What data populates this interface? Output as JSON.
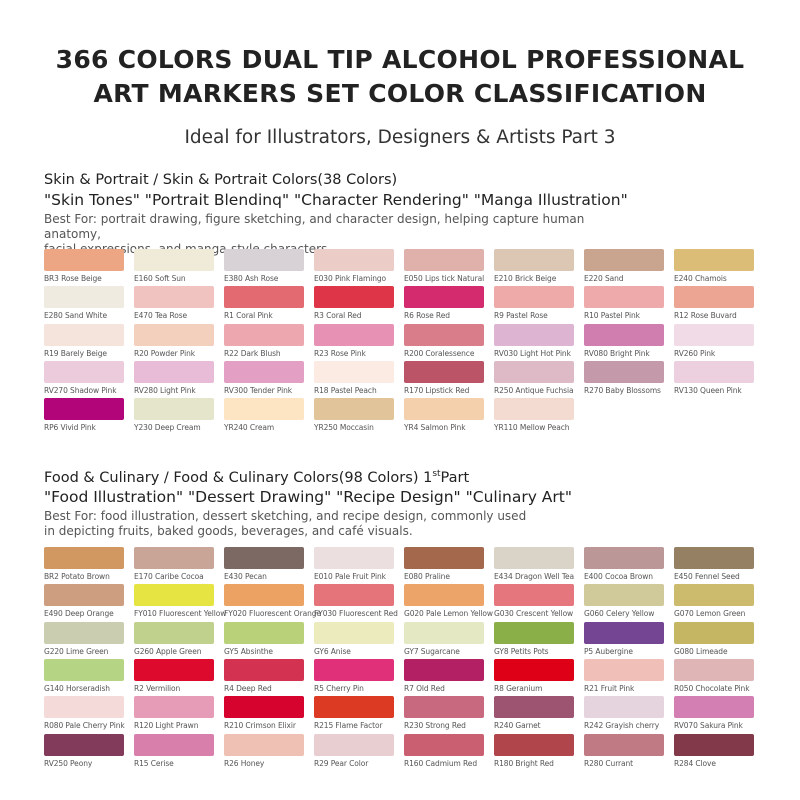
{
  "header": {
    "title_line1": "366 COLORS DUAL TIP ALCOHOL PROFESSIONAL",
    "title_line2": "ART MARKERS SET COLOR CLASSIFICATION",
    "subtitle": "Ideal for Illustrators, Designers & Artists Part 3"
  },
  "sections": [
    {
      "title": "Skin & Portrait / Skin & Portrait Colors(38 Colors)",
      "title_suffix": "",
      "title_sup": "",
      "quotes": "\"Skin Tones\" \"Portrait Blendinq\" \"Character Rendering\" \"Manga Illustration\"",
      "desc_line1": "Best For: portrait drawing, figure sketching, and character design, helping capture human anatomy,",
      "desc_line2": "facial expressions, and manga-style characters.",
      "colors": [
        {
          "label": "BR3 Rose Beige",
          "hex": "#eda684"
        },
        {
          "label": "E160 Soft Sun",
          "hex": "#efebd8"
        },
        {
          "label": "E380 Ash Rose",
          "hex": "#d8d2d6"
        },
        {
          "label": "E030 Pink Flamingo",
          "hex": "#ecccc6"
        },
        {
          "label": "E050 Lips tick Natural",
          "hex": "#dfb1aa"
        },
        {
          "label": "E210 Brick Beige",
          "hex": "#dcc7b4"
        },
        {
          "label": "E220 Sand",
          "hex": "#c9a58f"
        },
        {
          "label": "E240 Chamois",
          "hex": "#dcbd78"
        },
        {
          "label": "E280 Sand White",
          "hex": "#f0ebe0"
        },
        {
          "label": "E470 Tea Rose",
          "hex": "#f0c3c0"
        },
        {
          "label": "R1 Coral Pink",
          "hex": "#e26a70"
        },
        {
          "label": "R3 Coral Red",
          "hex": "#df3548"
        },
        {
          "label": "R6 Rose Red",
          "hex": "#d32b6e"
        },
        {
          "label": "R9 Pastel Rose",
          "hex": "#eeaaa8"
        },
        {
          "label": "R10 Pastel Pink",
          "hex": "#eeaaaa"
        },
        {
          "label": "R12 Rose Buvard",
          "hex": "#eca593"
        },
        {
          "label": "R19 Barely Beige",
          "hex": "#f4e4dc"
        },
        {
          "label": "R20 Powder Pink",
          "hex": "#f3cfbd"
        },
        {
          "label": "R22 Dark Blush",
          "hex": "#eca8ae"
        },
        {
          "label": "R23 Rose Pink",
          "hex": "#e792b4"
        },
        {
          "label": "R200 Coralessence",
          "hex": "#d87d89"
        },
        {
          "label": "RV030 Light Hot Pink",
          "hex": "#ddb5d2"
        },
        {
          "label": "RV080 Bright Pink",
          "hex": "#d07db0"
        },
        {
          "label": "RV260 Pink",
          "hex": "#f0dbe6"
        },
        {
          "label": "RV270 Shadow Pink",
          "hex": "#ecccdc"
        },
        {
          "label": "RV280 Light Pink",
          "hex": "#e8bbd6"
        },
        {
          "label": "RV300 Tender Pink",
          "hex": "#e3a0c4"
        },
        {
          "label": "R18 Pastel Peach",
          "hex": "#fcebe3"
        },
        {
          "label": "R170 Lipstick Red",
          "hex": "#bc5468"
        },
        {
          "label": "R250 Antique Fuchsia",
          "hex": "#deb9c6"
        },
        {
          "label": "R270 Baby Blossoms",
          "hex": "#c49aaa"
        },
        {
          "label": "RV130 Queen Pink",
          "hex": "#ecd0e0"
        },
        {
          "label": "RP6 Vivid Pink",
          "hex": "#b3057a"
        },
        {
          "label": "Y230 Deep Cream",
          "hex": "#e4e5cb"
        },
        {
          "label": "YR240 Cream",
          "hex": "#fde5c4"
        },
        {
          "label": "YR250 Moccasin",
          "hex": "#e2c49b"
        },
        {
          "label": "YR4 Salmon Pink",
          "hex": "#f4d0ac"
        },
        {
          "label": "YR110 Mellow Peach",
          "hex": "#f3dbd1"
        }
      ]
    },
    {
      "title": "Food & Culinary / Food & Culinary Colors(98 Colors) 1",
      "title_sup": "st",
      "title_suffix": "Part",
      "quotes": "\"Food Illustration\" \"Dessert Drawing\" \"Recipe Design\" \"Culinary Art\"",
      "desc_line1": "Best For: food illustration, dessert sketching, and recipe design, commonly used",
      "desc_line2": "in depicting fruits, baked goods, beverages, and café visuals.",
      "colors": [
        {
          "label": "BR2 Potato Brown",
          "hex": "#d29862"
        },
        {
          "label": "E170 Caribe Cocoa",
          "hex": "#c9a597"
        },
        {
          "label": "E430 Pecan",
          "hex": "#7c6963"
        },
        {
          "label": "E010 Pale Fruit Pink",
          "hex": "#ecdfdf"
        },
        {
          "label": "E080 Praline",
          "hex": "#a4684d"
        },
        {
          "label": "E434 Dragon Well Tea",
          "hex": "#dad3c7"
        },
        {
          "label": "E400 Cocoa Brown",
          "hex": "#bb9798"
        },
        {
          "label": "E450 Fennel Seed",
          "hex": "#958064"
        },
        {
          "label": "E490 Deep Orange",
          "hex": "#cd9e80"
        },
        {
          "label": "FY010 Fluorescent Yellow",
          "hex": "#e6e442"
        },
        {
          "label": "FY020 Fluorescent Orange",
          "hex": "#eba262"
        },
        {
          "label": "FY030 Fluorescent Red",
          "hex": "#e5737a"
        },
        {
          "label": "G020 Pale Lemon Yellow",
          "hex": "#eda468"
        },
        {
          "label": "G030 Crescent Yellow",
          "hex": "#e5767e"
        },
        {
          "label": "G060 Celery Yellow",
          "hex": "#d0ca9b"
        },
        {
          "label": "G070 Lemon Green",
          "hex": "#ccbb6d"
        },
        {
          "label": "G220 Lime Green",
          "hex": "#cacdb0"
        },
        {
          "label": "G260 Apple Green",
          "hex": "#c0d08d"
        },
        {
          "label": "GY5 Absinthe",
          "hex": "#b9d27a"
        },
        {
          "label": "GY6 Anise",
          "hex": "#ecebbe"
        },
        {
          "label": "GY7 Sugarcane",
          "hex": "#e5e9c3"
        },
        {
          "label": "GY8 Petits Pots",
          "hex": "#8aae48"
        },
        {
          "label": "P5 Aubergine",
          "hex": "#734592"
        },
        {
          "label": "G080 Limeade",
          "hex": "#c4b663"
        },
        {
          "label": "G140 Horseradish",
          "hex": "#b5d585"
        },
        {
          "label": "R2 Vermilion",
          "hex": "#de0a2e"
        },
        {
          "label": "R4 Deep Red",
          "hex": "#d33250"
        },
        {
          "label": "R5 Cherry Pin",
          "hex": "#e0307a"
        },
        {
          "label": "R7 Old Red",
          "hex": "#b32063"
        },
        {
          "label": "R8 Geranium",
          "hex": "#dd0016"
        },
        {
          "label": "R21 Fruit Pink",
          "hex": "#f0c0b8"
        },
        {
          "label": "R050 Chocolate Pink",
          "hex": "#e0b5b6"
        },
        {
          "label": "R080 Pale Cherry Pink",
          "hex": "#f4dbda"
        },
        {
          "label": "R120 Light Prawn",
          "hex": "#e69cb6"
        },
        {
          "label": "R210 Crimson Elixir",
          "hex": "#d6032f"
        },
        {
          "label": "R215 Flame Factor",
          "hex": "#dc3a22"
        },
        {
          "label": "R230 Strong Red",
          "hex": "#c9697f"
        },
        {
          "label": "R240 Garnet",
          "hex": "#9c5470"
        },
        {
          "label": "R242 Grayish cherry",
          "hex": "#e5d3de"
        },
        {
          "label": "RV070 Sakura Pink",
          "hex": "#d47fb3"
        },
        {
          "label": "RV250 Peony",
          "hex": "#833b5c"
        },
        {
          "label": "R15 Cerise",
          "hex": "#d87fac"
        },
        {
          "label": "R26 Honey",
          "hex": "#efc0b4"
        },
        {
          "label": "R29 Pear Color",
          "hex": "#e8cdd1"
        },
        {
          "label": "R160 Cadmium Red",
          "hex": "#c95f70"
        },
        {
          "label": "R180 Bright Red",
          "hex": "#b0454c"
        },
        {
          "label": "R280 Currant",
          "hex": "#bf7a83"
        },
        {
          "label": "R284 Clove",
          "hex": "#823a4a"
        }
      ]
    }
  ]
}
